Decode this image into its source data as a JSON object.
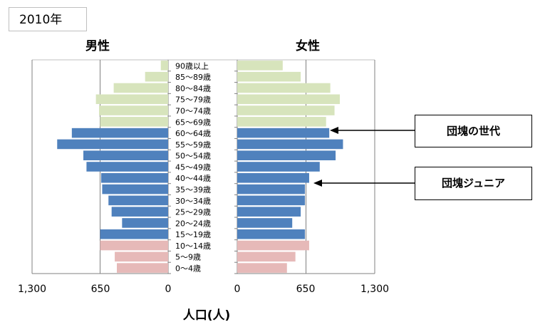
{
  "header": {
    "year_label": "2010年"
  },
  "gender_labels": {
    "male": "男性",
    "female": "女性"
  },
  "axis": {
    "male_ticks": [
      "1,300",
      "650",
      "0"
    ],
    "female_ticks": [
      "0",
      "650",
      "1,300"
    ],
    "title": "人口(人)"
  },
  "annotations": {
    "dankai": "団塊の世代",
    "dankai_junior": "団塊ジュニア"
  },
  "colors": {
    "youth": "#e6b9b8",
    "working": "#4f81bd",
    "elderly": "#d7e4bc",
    "axis": "#808080"
  },
  "chart_data": {
    "type": "bar",
    "orientation": "horizontal-pyramid",
    "categories": [
      "90歳以上",
      "85〜89歳",
      "80〜84歳",
      "75〜79歳",
      "70〜74歳",
      "65〜69歳",
      "60〜64歳",
      "55〜59歳",
      "50〜54歳",
      "45〜49歳",
      "40〜44歳",
      "35〜39歳",
      "30〜34歳",
      "25〜29歳",
      "20〜24歳",
      "15〜19歳",
      "10〜14歳",
      "5〜9歳",
      "0〜4歳"
    ],
    "groups": [
      "elderly",
      "elderly",
      "elderly",
      "elderly",
      "elderly",
      "elderly",
      "working",
      "working",
      "working",
      "working",
      "working",
      "working",
      "working",
      "working",
      "working",
      "working",
      "youth",
      "youth",
      "youth"
    ],
    "series": [
      {
        "name": "男性",
        "values": [
          70,
          220,
          520,
          690,
          660,
          650,
          920,
          1060,
          810,
          780,
          640,
          630,
          570,
          540,
          440,
          650,
          650,
          510,
          490
        ]
      },
      {
        "name": "女性",
        "values": [
          430,
          600,
          880,
          970,
          920,
          840,
          870,
          1000,
          930,
          780,
          680,
          640,
          640,
          600,
          520,
          640,
          680,
          550,
          470
        ]
      }
    ],
    "xlim": [
      0,
      1300
    ],
    "xlabel": "人口(人)"
  }
}
